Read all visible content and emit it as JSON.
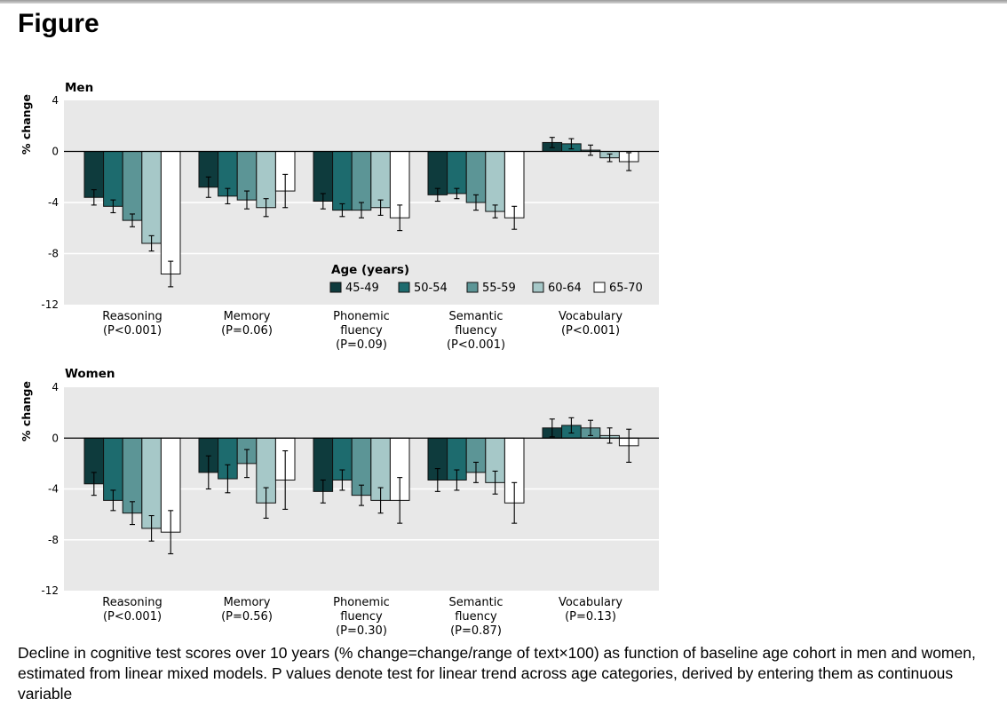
{
  "page": {
    "title": "Figure",
    "caption": "Decline in cognitive test scores over 10 years (% change=change/range of text×100) as function of baseline age cohort in men and women, estimated from linear mixed models. P values denote test for linear trend across age categories, derived by entering them as continuous variable"
  },
  "colors": {
    "panel_bg": "#e8e8e8",
    "series": [
      "#0e3b3d",
      "#1d6b6e",
      "#5c9596",
      "#a6c8c8",
      "#ffffff"
    ]
  },
  "chart_data": [
    {
      "type": "bar",
      "title": "Men",
      "ylabel": "% change",
      "ylim": [
        -12,
        4
      ],
      "yticks": [
        4,
        0,
        -4,
        -8,
        -12
      ],
      "ytick_labels": [
        "4",
        "0",
        "-4",
        "-8",
        "-12"
      ],
      "categories": [
        {
          "name": "Reasoning",
          "pvalue": "(P<0.001)"
        },
        {
          "name": "Memory",
          "pvalue": "(P=0.06)"
        },
        {
          "name": "Phonemic\nfluency",
          "pvalue": "(P=0.09)"
        },
        {
          "name": "Semantic\nfluency",
          "pvalue": "(P<0.001)"
        },
        {
          "name": "Vocabulary",
          "pvalue": "(P<0.001)"
        }
      ],
      "legend": {
        "title": "Age (years)",
        "position": "bottom-center"
      },
      "series": [
        {
          "name": "45-49",
          "values": [
            -3.6,
            -2.8,
            -3.9,
            -3.4,
            0.7
          ],
          "errors": [
            0.6,
            0.8,
            0.6,
            0.5,
            0.4
          ]
        },
        {
          "name": "50-54",
          "values": [
            -4.3,
            -3.5,
            -4.6,
            -3.3,
            0.6
          ],
          "errors": [
            0.5,
            0.6,
            0.5,
            0.4,
            0.4
          ]
        },
        {
          "name": "55-59",
          "values": [
            -5.4,
            -3.8,
            -4.6,
            -4.0,
            0.1
          ],
          "errors": [
            0.5,
            0.7,
            0.6,
            0.6,
            0.4
          ]
        },
        {
          "name": "60-64",
          "values": [
            -7.2,
            -4.4,
            -4.4,
            -4.7,
            -0.5
          ],
          "errors": [
            0.6,
            0.7,
            0.6,
            0.5,
            0.3
          ]
        },
        {
          "name": "65-70",
          "values": [
            -9.6,
            -3.1,
            -5.2,
            -5.2,
            -0.8
          ],
          "errors": [
            1.0,
            1.3,
            1.0,
            0.9,
            0.7
          ]
        }
      ]
    },
    {
      "type": "bar",
      "title": "Women",
      "ylabel": "% change",
      "ylim": [
        -12,
        4
      ],
      "yticks": [
        4,
        0,
        -4,
        -8,
        -12
      ],
      "ytick_labels": [
        "4",
        "0",
        "-4",
        "-8",
        "-12"
      ],
      "categories": [
        {
          "name": "Reasoning",
          "pvalue": "(P<0.001)"
        },
        {
          "name": "Memory",
          "pvalue": "(P=0.56)"
        },
        {
          "name": "Phonemic\nfluency",
          "pvalue": "(P=0.30)"
        },
        {
          "name": "Semantic\nfluency",
          "pvalue": "(P=0.87)"
        },
        {
          "name": "Vocabulary",
          "pvalue": "(P=0.13)"
        }
      ],
      "series": [
        {
          "name": "45-49",
          "values": [
            -3.6,
            -2.7,
            -4.2,
            -3.3,
            0.8
          ],
          "errors": [
            0.9,
            1.3,
            0.9,
            0.9,
            0.7
          ]
        },
        {
          "name": "50-54",
          "values": [
            -4.9,
            -3.2,
            -3.3,
            -3.3,
            1.0
          ],
          "errors": [
            0.8,
            1.1,
            0.8,
            0.8,
            0.6
          ]
        },
        {
          "name": "55-59",
          "values": [
            -5.9,
            -2.0,
            -4.5,
            -2.7,
            0.8
          ],
          "errors": [
            0.9,
            1.1,
            0.8,
            0.8,
            0.6
          ]
        },
        {
          "name": "60-64",
          "values": [
            -7.1,
            -5.1,
            -4.9,
            -3.5,
            0.2
          ],
          "errors": [
            1.0,
            1.2,
            1.0,
            0.9,
            0.6
          ]
        },
        {
          "name": "65-70",
          "values": [
            -7.4,
            -3.3,
            -4.9,
            -5.1,
            -0.6
          ],
          "errors": [
            1.7,
            2.3,
            1.8,
            1.6,
            1.3
          ]
        }
      ]
    }
  ]
}
